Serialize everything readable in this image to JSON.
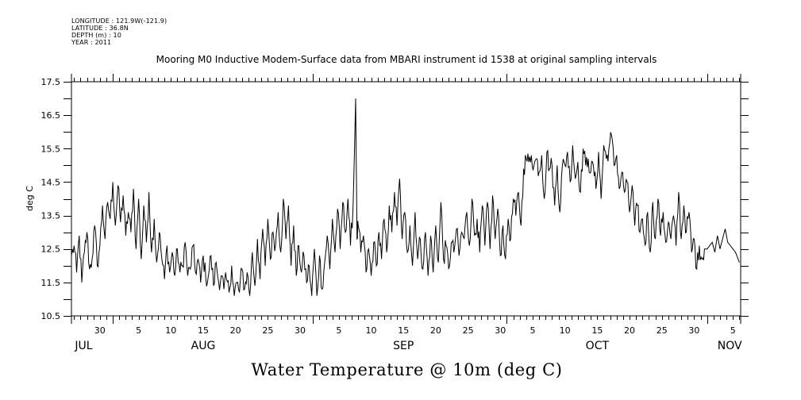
{
  "header": {
    "meta_lines": [
      "LONGITUDE : 121.9W(-121.9)",
      "LATITUDE : 36.8N",
      "DEPTH (m) : 10",
      "YEAR : 2011"
    ]
  },
  "chart_data": {
    "type": "line",
    "title": "Mooring M0 Inductive Modem-Surface data from MBARI instrument id 1538 at original sampling intervals",
    "xlabel": "Water Temperature @ 10m (deg C)",
    "ylabel": "deg C",
    "ylim": [
      10.5,
      17.5
    ],
    "yticks": [
      10.5,
      11.5,
      12.5,
      13.5,
      14.5,
      15.5,
      16.5,
      17.5
    ],
    "ytick_labels": [
      "10.5",
      "11.5",
      "12.5",
      "13.5",
      "14.5",
      "15.5",
      "16.5",
      "17.5"
    ],
    "x_unit": "day-of-year 2011",
    "xlim_doy": [
      206.6,
      310.2
    ],
    "xticks": [
      {
        "doy": 211,
        "label": "30"
      },
      {
        "doy": 217,
        "label": "5"
      },
      {
        "doy": 222,
        "label": "10"
      },
      {
        "doy": 227,
        "label": "15"
      },
      {
        "doy": 232,
        "label": "20"
      },
      {
        "doy": 237,
        "label": "25"
      },
      {
        "doy": 242,
        "label": "30"
      },
      {
        "doy": 248,
        "label": "5"
      },
      {
        "doy": 253,
        "label": "10"
      },
      {
        "doy": 258,
        "label": "15"
      },
      {
        "doy": 263,
        "label": "20"
      },
      {
        "doy": 268,
        "label": "25"
      },
      {
        "doy": 273,
        "label": "30"
      },
      {
        "doy": 278,
        "label": "5"
      },
      {
        "doy": 283,
        "label": "10"
      },
      {
        "doy": 288,
        "label": "15"
      },
      {
        "doy": 293,
        "label": "20"
      },
      {
        "doy": 298,
        "label": "25"
      },
      {
        "doy": 303,
        "label": "30"
      },
      {
        "doy": 309,
        "label": "5"
      }
    ],
    "month_boundaries_doy": [
      213,
      244,
      274,
      305
    ],
    "months": [
      {
        "doy": 208.5,
        "label": "JUL"
      },
      {
        "doy": 227,
        "label": "AUG"
      },
      {
        "doy": 258,
        "label": "SEP"
      },
      {
        "doy": 288,
        "label": "OCT"
      },
      {
        "doy": 308.5,
        "label": "NOV"
      }
    ],
    "series": [
      {
        "name": "Water Temperature @ 10m",
        "color": "#000000",
        "anchor_points": [
          [
            206.6,
            12.3
          ],
          [
            207.0,
            12.6
          ],
          [
            207.4,
            11.8
          ],
          [
            207.8,
            12.9
          ],
          [
            208.2,
            11.5
          ],
          [
            208.6,
            12.4
          ],
          [
            209.0,
            13.0
          ],
          [
            209.4,
            11.9
          ],
          [
            209.8,
            12.2
          ],
          [
            210.2,
            13.2
          ],
          [
            210.6,
            12.0
          ],
          [
            211.0,
            12.6
          ],
          [
            211.4,
            13.8
          ],
          [
            211.8,
            12.8
          ],
          [
            212.2,
            13.9
          ],
          [
            212.6,
            13.4
          ],
          [
            213.0,
            14.5
          ],
          [
            213.4,
            13.2
          ],
          [
            213.8,
            14.4
          ],
          [
            214.2,
            13.3
          ],
          [
            214.6,
            14.1
          ],
          [
            215.0,
            12.9
          ],
          [
            215.4,
            13.6
          ],
          [
            215.8,
            13.0
          ],
          [
            216.2,
            14.3
          ],
          [
            216.6,
            12.5
          ],
          [
            217.0,
            14.0
          ],
          [
            217.4,
            12.2
          ],
          [
            217.8,
            13.8
          ],
          [
            218.2,
            12.7
          ],
          [
            218.6,
            14.2
          ],
          [
            219.0,
            12.4
          ],
          [
            219.4,
            13.4
          ],
          [
            219.8,
            12.1
          ],
          [
            220.2,
            13.0
          ],
          [
            220.6,
            12.2
          ],
          [
            221.0,
            11.6
          ],
          [
            221.4,
            12.6
          ],
          [
            221.8,
            11.8
          ],
          [
            222.2,
            12.4
          ],
          [
            222.6,
            11.7
          ],
          [
            223.0,
            12.5
          ],
          [
            223.4,
            11.8
          ],
          [
            223.8,
            12.0
          ],
          [
            224.2,
            12.7
          ],
          [
            224.6,
            11.7
          ],
          [
            225.0,
            11.9
          ],
          [
            225.4,
            12.6
          ],
          [
            225.8,
            11.8
          ],
          [
            226.2,
            12.2
          ],
          [
            226.6,
            11.5
          ],
          [
            227.0,
            12.3
          ],
          [
            227.4,
            11.6
          ],
          [
            227.8,
            11.7
          ],
          [
            228.2,
            12.3
          ],
          [
            228.6,
            11.4
          ],
          [
            229.0,
            12.1
          ],
          [
            229.4,
            11.5
          ],
          [
            229.8,
            11.7
          ],
          [
            230.2,
            11.3
          ],
          [
            230.6,
            11.6
          ],
          [
            231.0,
            11.2
          ],
          [
            231.4,
            12.0
          ],
          [
            231.8,
            11.1
          ],
          [
            232.2,
            11.5
          ],
          [
            232.6,
            11.2
          ],
          [
            233.0,
            11.9
          ],
          [
            233.4,
            11.3
          ],
          [
            233.8,
            11.8
          ],
          [
            234.2,
            11.1
          ],
          [
            234.6,
            12.4
          ],
          [
            235.0,
            11.4
          ],
          [
            235.4,
            12.8
          ],
          [
            235.8,
            11.6
          ],
          [
            236.2,
            13.1
          ],
          [
            236.6,
            12.0
          ],
          [
            237.0,
            13.4
          ],
          [
            237.4,
            12.2
          ],
          [
            237.8,
            13.0
          ],
          [
            238.2,
            12.6
          ],
          [
            238.6,
            13.6
          ],
          [
            239.0,
            12.4
          ],
          [
            239.4,
            14.0
          ],
          [
            239.8,
            12.8
          ],
          [
            240.2,
            13.8
          ],
          [
            240.6,
            12.0
          ],
          [
            241.0,
            13.2
          ],
          [
            241.4,
            11.7
          ],
          [
            241.8,
            12.6
          ],
          [
            242.2,
            11.8
          ],
          [
            242.6,
            12.3
          ],
          [
            243.0,
            11.5
          ],
          [
            243.4,
            12.0
          ],
          [
            243.8,
            11.1
          ],
          [
            244.2,
            12.5
          ],
          [
            244.6,
            11.1
          ],
          [
            245.0,
            12.3
          ],
          [
            245.4,
            11.3
          ],
          [
            245.8,
            12.1
          ],
          [
            246.2,
            12.9
          ],
          [
            246.6,
            11.9
          ],
          [
            247.0,
            13.4
          ],
          [
            247.4,
            12.4
          ],
          [
            247.8,
            13.7
          ],
          [
            248.2,
            12.5
          ],
          [
            248.6,
            13.9
          ],
          [
            249.0,
            13.0
          ],
          [
            249.4,
            14.0
          ],
          [
            249.8,
            12.6
          ],
          [
            250.2,
            13.8
          ],
          [
            250.6,
            17.0
          ],
          [
            250.8,
            12.8
          ],
          [
            251.0,
            13.2
          ],
          [
            251.4,
            12.4
          ],
          [
            251.8,
            12.9
          ],
          [
            252.2,
            11.8
          ],
          [
            252.6,
            12.5
          ],
          [
            253.0,
            11.7
          ],
          [
            253.4,
            12.7
          ],
          [
            253.8,
            12.0
          ],
          [
            254.2,
            13.0
          ],
          [
            254.6,
            12.2
          ],
          [
            255.0,
            13.4
          ],
          [
            255.4,
            12.4
          ],
          [
            255.8,
            13.8
          ],
          [
            256.2,
            13.0
          ],
          [
            256.6,
            14.2
          ],
          [
            257.0,
            13.2
          ],
          [
            257.4,
            14.6
          ],
          [
            257.8,
            12.8
          ],
          [
            258.2,
            13.6
          ],
          [
            258.6,
            12.4
          ],
          [
            259.0,
            13.2
          ],
          [
            259.4,
            12.0
          ],
          [
            259.8,
            13.6
          ],
          [
            260.2,
            12.2
          ],
          [
            260.6,
            12.8
          ],
          [
            261.0,
            11.9
          ],
          [
            261.4,
            13.0
          ],
          [
            261.8,
            11.7
          ],
          [
            262.2,
            12.9
          ],
          [
            262.6,
            11.8
          ],
          [
            263.0,
            13.2
          ],
          [
            263.4,
            12.1
          ],
          [
            263.8,
            13.9
          ],
          [
            264.2,
            12.2
          ],
          [
            264.6,
            12.6
          ],
          [
            265.0,
            11.9
          ],
          [
            265.4,
            12.7
          ],
          [
            265.8,
            12.4
          ],
          [
            266.2,
            13.1
          ],
          [
            266.6,
            12.3
          ],
          [
            267.0,
            13.0
          ],
          [
            267.4,
            12.8
          ],
          [
            267.8,
            13.6
          ],
          [
            268.2,
            12.6
          ],
          [
            268.6,
            14.0
          ],
          [
            269.0,
            12.9
          ],
          [
            269.4,
            13.4
          ],
          [
            269.8,
            12.4
          ],
          [
            270.2,
            13.8
          ],
          [
            270.6,
            12.6
          ],
          [
            271.0,
            13.9
          ],
          [
            271.4,
            12.5
          ],
          [
            271.8,
            14.1
          ],
          [
            272.2,
            12.8
          ],
          [
            272.6,
            13.7
          ],
          [
            273.0,
            12.3
          ],
          [
            273.4,
            13.2
          ],
          [
            273.8,
            12.2
          ],
          [
            274.2,
            13.4
          ],
          [
            274.6,
            12.8
          ],
          [
            275.0,
            14.0
          ],
          [
            275.4,
            13.5
          ],
          [
            275.8,
            14.2
          ],
          [
            276.2,
            13.2
          ],
          [
            276.6,
            14.9
          ],
          [
            277.0,
            15.2
          ],
          [
            277.4,
            15.1
          ],
          [
            277.8,
            15.3
          ],
          [
            278.2,
            15.0
          ],
          [
            278.6,
            15.2
          ],
          [
            279.0,
            14.8
          ],
          [
            279.4,
            15.3
          ],
          [
            279.8,
            14.0
          ],
          [
            280.2,
            15.4
          ],
          [
            280.6,
            14.9
          ],
          [
            281.0,
            15.0
          ],
          [
            281.4,
            13.8
          ],
          [
            281.8,
            15.0
          ],
          [
            282.2,
            13.6
          ],
          [
            282.6,
            15.0
          ],
          [
            283.0,
            15.0
          ],
          [
            283.4,
            15.4
          ],
          [
            283.8,
            14.5
          ],
          [
            284.2,
            15.6
          ],
          [
            284.6,
            14.6
          ],
          [
            285.0,
            15.1
          ],
          [
            285.4,
            14.2
          ],
          [
            285.8,
            15.5
          ],
          [
            286.2,
            15.0
          ],
          [
            286.6,
            15.2
          ],
          [
            287.0,
            14.8
          ],
          [
            287.4,
            15.0
          ],
          [
            287.8,
            14.3
          ],
          [
            288.2,
            15.4
          ],
          [
            288.6,
            14.0
          ],
          [
            289.0,
            15.6
          ],
          [
            289.4,
            15.2
          ],
          [
            289.8,
            15.5
          ],
          [
            290.2,
            15.9
          ],
          [
            290.6,
            15.0
          ],
          [
            291.0,
            15.3
          ],
          [
            291.4,
            14.3
          ],
          [
            291.8,
            14.8
          ],
          [
            292.2,
            14.2
          ],
          [
            292.6,
            14.5
          ],
          [
            293.0,
            13.6
          ],
          [
            293.4,
            14.4
          ],
          [
            293.8,
            13.2
          ],
          [
            294.2,
            13.8
          ],
          [
            294.6,
            13.0
          ],
          [
            295.0,
            13.4
          ],
          [
            295.4,
            12.6
          ],
          [
            295.8,
            13.6
          ],
          [
            296.2,
            12.4
          ],
          [
            296.6,
            13.9
          ],
          [
            297.0,
            12.8
          ],
          [
            297.4,
            14.0
          ],
          [
            297.8,
            12.9
          ],
          [
            298.2,
            13.6
          ],
          [
            298.6,
            12.7
          ],
          [
            299.0,
            13.3
          ],
          [
            299.4,
            12.8
          ],
          [
            299.8,
            13.5
          ],
          [
            300.2,
            12.6
          ],
          [
            300.6,
            14.2
          ],
          [
            301.0,
            12.8
          ],
          [
            301.4,
            13.8
          ],
          [
            301.8,
            13.0
          ],
          [
            302.2,
            13.6
          ],
          [
            302.6,
            12.4
          ],
          [
            303.0,
            12.8
          ],
          [
            303.4,
            11.9
          ],
          [
            303.8,
            12.6
          ],
          [
            304.2,
            12.2
          ],
          [
            304.6,
            12.5
          ],
          [
            305.0,
            12.5
          ],
          [
            305.4,
            12.6
          ],
          [
            305.8,
            12.7
          ],
          [
            306.2,
            12.4
          ],
          [
            306.6,
            12.9
          ],
          [
            307.0,
            12.5
          ],
          [
            307.4,
            12.8
          ],
          [
            307.8,
            13.1
          ],
          [
            308.2,
            12.7
          ],
          [
            308.6,
            12.6
          ],
          [
            309.0,
            12.5
          ],
          [
            309.4,
            12.4
          ],
          [
            309.8,
            12.2
          ],
          [
            310.0,
            12.1
          ]
        ]
      }
    ],
    "grid": false,
    "legend": "none"
  }
}
